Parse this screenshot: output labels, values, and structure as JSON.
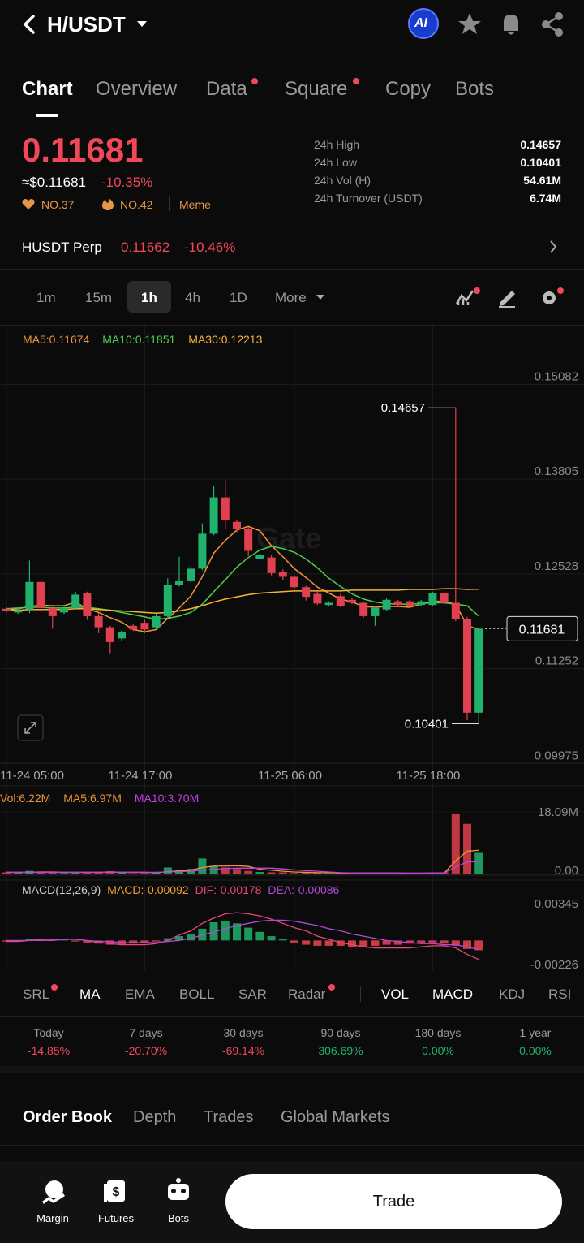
{
  "header": {
    "title": "H/USDT",
    "ai": "AI"
  },
  "tabs": [
    "Chart",
    "Overview",
    "Data",
    "Square",
    "Copy",
    "Bots"
  ],
  "price": {
    "last": "0.11681",
    "usd": "≈$0.11681",
    "change": "-10.35%",
    "ranks": [
      "NO.37",
      "NO.42"
    ],
    "tag": "Meme"
  },
  "stats": [
    {
      "label": "24h High",
      "value": "0.14657"
    },
    {
      "label": "24h Low",
      "value": "0.10401"
    },
    {
      "label": "24h Vol (H)",
      "value": "54.61M"
    },
    {
      "label": "24h Turnover (USDT)",
      "value": "6.74M"
    }
  ],
  "perp": {
    "name": "HUSDT Perp",
    "price": "0.11662",
    "change": "-10.46%"
  },
  "intervals": [
    "1m",
    "15m",
    "1h",
    "4h",
    "1D",
    "More"
  ],
  "chart": {
    "type": "candlestick",
    "watermark": "Gate",
    "up_color": "#20b26c",
    "down_color": "#e0404f",
    "times": [
      "11-24 05:00",
      null,
      null,
      null,
      null,
      null,
      null,
      null,
      null,
      null,
      null,
      null,
      "11-24 17:00",
      null,
      null,
      null,
      null,
      null,
      null,
      null,
      null,
      null,
      null,
      null,
      null,
      "11-25 06:00",
      null,
      null,
      null,
      null,
      null,
      null,
      null,
      null,
      null,
      null,
      null,
      "11-25 18:00",
      null,
      null,
      null,
      null
    ],
    "open": [
      0.1195,
      0.119,
      0.1194,
      0.1231,
      0.1196,
      0.119,
      0.1196,
      0.1216,
      0.1185,
      0.117,
      0.1155,
      0.1172,
      0.1176,
      0.117,
      0.1185,
      0.1227,
      0.1232,
      0.1249,
      0.1296,
      0.1345,
      0.1312,
      0.1303,
      0.1262,
      0.1264,
      0.1245,
      0.1238,
      0.1224,
      0.1215,
      0.12,
      0.1212,
      0.1207,
      0.1203,
      0.1185,
      0.1194,
      0.1205,
      0.1205,
      0.12,
      0.12,
      0.1216,
      0.1203,
      0.1181,
      0.1055
    ],
    "high": [
      0.1197,
      0.1196,
      0.126,
      0.1233,
      0.1198,
      0.12,
      0.1218,
      0.1218,
      0.1189,
      0.1172,
      0.1166,
      0.1175,
      0.118,
      0.1188,
      0.1236,
      0.1265,
      0.1252,
      0.131,
      0.136,
      0.1368,
      0.1315,
      0.1305,
      0.127,
      0.1267,
      0.1248,
      0.124,
      0.1226,
      0.1218,
      0.1205,
      0.1215,
      0.1209,
      0.1205,
      0.1198,
      0.121,
      0.1207,
      0.1207,
      0.1207,
      0.1218,
      0.1218,
      0.14657,
      0.1184,
      0.117
    ],
    "low": [
      0.119,
      0.1188,
      0.1189,
      0.119,
      0.1168,
      0.1188,
      0.1194,
      0.118,
      0.1162,
      0.1135,
      0.1152,
      0.1165,
      0.1162,
      0.1168,
      0.1183,
      0.1225,
      0.123,
      0.1247,
      0.1294,
      0.1302,
      0.1298,
      0.1266,
      0.126,
      0.124,
      0.1234,
      0.1222,
      0.1206,
      0.12,
      0.1198,
      0.1197,
      0.1201,
      0.1183,
      0.1172,
      0.1192,
      0.1198,
      0.1197,
      0.1198,
      0.1198,
      0.12,
      0.1178,
      0.1045,
      0.10401
    ],
    "close": [
      0.1192,
      0.1193,
      0.1231,
      0.1196,
      0.1185,
      0.1195,
      0.1214,
      0.1185,
      0.117,
      0.115,
      0.1164,
      0.1167,
      0.1167,
      0.1185,
      0.1227,
      0.1232,
      0.1249,
      0.1296,
      0.1345,
      0.1314,
      0.1303,
      0.1273,
      0.1267,
      0.1243,
      0.1238,
      0.1224,
      0.1211,
      0.1202,
      0.1203,
      0.1199,
      0.1203,
      0.1185,
      0.1196,
      0.1207,
      0.12,
      0.1199,
      0.1205,
      0.1216,
      0.1203,
      0.1181,
      0.1055,
      0.11681
    ],
    "ma": [
      {
        "name": "MA5:0.11674",
        "color": "#f0953a",
        "values": [
          0.1193,
          0.1195,
          0.1198,
          0.12,
          0.1199,
          0.1199,
          0.1204,
          0.1195,
          0.119,
          0.1183,
          0.1177,
          0.1167,
          0.1164,
          0.1167,
          0.1182,
          0.1196,
          0.1212,
          0.1238,
          0.127,
          0.1287,
          0.1301,
          0.1306,
          0.13,
          0.128,
          0.1265,
          0.1249,
          0.1237,
          0.1224,
          0.1216,
          0.1208,
          0.1204,
          0.1198,
          0.1197,
          0.1198,
          0.1198,
          0.1197,
          0.1201,
          0.1205,
          0.1205,
          0.1201,
          0.1172,
          0.11674
        ]
      },
      {
        "name": "MA10:0.11851",
        "color": "#4cd04c",
        "values": [
          0.1195,
          0.1196,
          0.1197,
          0.1197,
          0.1196,
          0.1196,
          0.1197,
          0.1197,
          0.1195,
          0.1193,
          0.119,
          0.1187,
          0.1184,
          0.1181,
          0.1182,
          0.1185,
          0.119,
          0.1201,
          0.1218,
          0.1234,
          0.1251,
          0.1264,
          0.1274,
          0.1279,
          0.1276,
          0.1271,
          0.1262,
          0.125,
          0.1236,
          0.1225,
          0.1215,
          0.1208,
          0.1204,
          0.1202,
          0.1201,
          0.1201,
          0.1202,
          0.1203,
          0.1203,
          0.1201,
          0.1199,
          0.11851
        ]
      },
      {
        "name": "MA30:0.12213",
        "color": "#f5b335",
        "values": [
          0.1193,
          0.1193,
          0.1194,
          0.1194,
          0.1194,
          0.1194,
          0.1195,
          0.1195,
          0.1194,
          0.1193,
          0.1192,
          0.1191,
          0.119,
          0.1189,
          0.119,
          0.1192,
          0.1195,
          0.1199,
          0.1204,
          0.1208,
          0.1211,
          0.1214,
          0.1216,
          0.1217,
          0.1218,
          0.1219,
          0.1219,
          0.1219,
          0.1219,
          0.1219,
          0.122,
          0.122,
          0.122,
          0.122,
          0.122,
          0.1221,
          0.1221,
          0.1221,
          0.1222,
          0.1222,
          0.1221,
          0.12213
        ]
      }
    ],
    "ylim": [
      0.0987,
      0.1572
    ],
    "yticks": [
      0.15082,
      0.13805,
      0.12528,
      0.11252,
      0.09975
    ],
    "high_marker": 0.14657,
    "low_marker": 0.10401,
    "last_marker": 0.11681,
    "volume": {
      "legend": "Vol:6.22M",
      "legend_color": "#f0953a",
      "values": [
        0.6,
        0.5,
        1.0,
        0.8,
        0.5,
        0.4,
        0.6,
        0.7,
        0.6,
        0.9,
        0.5,
        0.3,
        0.4,
        0.5,
        2.0,
        1.3,
        1.6,
        4.6,
        2.4,
        2.0,
        1.6,
        1.0,
        0.7,
        0.6,
        0.6,
        0.4,
        0.5,
        0.5,
        0.3,
        0.4,
        0.3,
        0.5,
        0.4,
        0.4,
        0.3,
        0.3,
        0.3,
        0.5,
        0.6,
        17.6,
        14.6,
        6.22
      ],
      "ma": [
        {
          "name": "MA5:6.97M",
          "color": "#f0953a",
          "values": [
            0.6,
            0.6,
            0.6,
            0.7,
            0.7,
            0.6,
            0.6,
            0.6,
            0.6,
            0.7,
            0.6,
            0.6,
            0.6,
            0.5,
            0.8,
            1.0,
            1.2,
            2.0,
            2.4,
            2.4,
            2.5,
            2.3,
            1.5,
            1.2,
            0.9,
            0.7,
            0.6,
            0.5,
            0.5,
            0.4,
            0.4,
            0.4,
            0.4,
            0.4,
            0.4,
            0.3,
            0.3,
            0.4,
            0.4,
            3.9,
            6.7,
            6.97
          ]
        },
        {
          "name": "MA10:3.70M",
          "color": "#c040e0",
          "values": [
            0.6,
            0.6,
            0.6,
            0.6,
            0.6,
            0.6,
            0.6,
            0.6,
            0.6,
            0.6,
            0.6,
            0.6,
            0.6,
            0.6,
            0.7,
            0.8,
            0.9,
            1.2,
            1.5,
            1.7,
            1.8,
            1.8,
            1.8,
            1.8,
            1.6,
            1.3,
            1.1,
            0.9,
            0.7,
            0.5,
            0.4,
            0.4,
            0.4,
            0.4,
            0.4,
            0.4,
            0.4,
            0.4,
            0.4,
            2.2,
            3.6,
            3.7
          ]
        }
      ],
      "ylim": [
        0,
        20.4
      ],
      "yticks": [
        {
          "value": 18.09,
          "label": "18.09M"
        },
        {
          "value": 0,
          "label": "0.00"
        }
      ]
    },
    "macd": {
      "title": "MACD(12,26,9)",
      "hist_name": "MACD:-0.00092",
      "hist_color": "#f0a030",
      "hist": [
        -0.0001,
        -0.0001,
        0.0001,
        0.0001,
        0.0001,
        0.0001,
        -0.0001,
        -0.0002,
        -0.0003,
        -0.0004,
        -0.0004,
        -0.0003,
        -0.0002,
        -0.0001,
        0.0002,
        0.0004,
        0.0006,
        0.0011,
        0.0017,
        0.0018,
        0.0016,
        0.0012,
        0.0008,
        0.0004,
        0.0001,
        -0.0002,
        -0.0004,
        -0.0005,
        -0.0005,
        -0.0005,
        -0.0006,
        -0.0006,
        -0.0005,
        -0.0004,
        -0.0004,
        -0.0003,
        -0.0002,
        -0.0002,
        -0.0003,
        -0.0005,
        -0.0008,
        -0.00092
      ],
      "lines": [
        {
          "name": "DIF:-0.00178",
          "color": "#e8457a",
          "values": [
            -0.0001,
            -0.0001,
            0,
            0.0001,
            0.0001,
            0.0001,
            0.0001,
            0,
            -0.0002,
            -0.0003,
            -0.0004,
            -0.0004,
            -0.0004,
            -0.0003,
            0,
            0.0005,
            0.0009,
            0.0016,
            0.0021,
            0.0025,
            0.0026,
            0.0025,
            0.0023,
            0.002,
            0.0016,
            0.0012,
            0.0009,
            0.0004,
            0.0001,
            -0.0002,
            -0.0004,
            -0.0006,
            -0.0007,
            -0.0007,
            -0.0007,
            -0.0007,
            -0.0006,
            -0.0005,
            -0.0005,
            -0.0007,
            -0.0013,
            -0.00178
          ]
        },
        {
          "name": "DEA:-0.00086",
          "color": "#b04ad8",
          "values": [
            0,
            0,
            0,
            0,
            0,
            0.0001,
            0.0001,
            0,
            -0.0001,
            -0.0001,
            -0.0002,
            -0.0002,
            -0.0002,
            -0.0002,
            -0.0001,
            0,
            0.0002,
            0.0005,
            0.0008,
            0.0011,
            0.0014,
            0.0016,
            0.0018,
            0.0019,
            0.0019,
            0.0018,
            0.0016,
            0.0014,
            0.0011,
            0.0009,
            0.0006,
            0.0004,
            0.0002,
            0,
            -0.0001,
            -0.0002,
            -0.0003,
            -0.0003,
            -0.0004,
            -0.0004,
            -0.0006,
            -0.00086
          ]
        }
      ],
      "ylim": [
        -0.00279,
        0.00406
      ],
      "yticks": [
        0.00345,
        -0.00226
      ]
    }
  },
  "indicators": [
    "SRL",
    "MA",
    "EMA",
    "BOLL",
    "SAR",
    "Radar",
    "VOL",
    "MACD",
    "KDJ",
    "RSI"
  ],
  "periods": [
    {
      "label": "Today",
      "value": "-14.85%"
    },
    {
      "label": "7 days",
      "value": "-20.70%"
    },
    {
      "label": "30 days",
      "value": "-69.14%"
    },
    {
      "label": "90 days",
      "value": "306.69%"
    },
    {
      "label": "180 days",
      "value": "0.00%"
    },
    {
      "label": "1 year",
      "value": "0.00%"
    }
  ],
  "book_tabs": [
    "Order Book",
    "Depth",
    "Trades",
    "Global Markets"
  ],
  "nav": [
    "Margin",
    "Futures",
    "Bots"
  ],
  "trade": "Trade"
}
